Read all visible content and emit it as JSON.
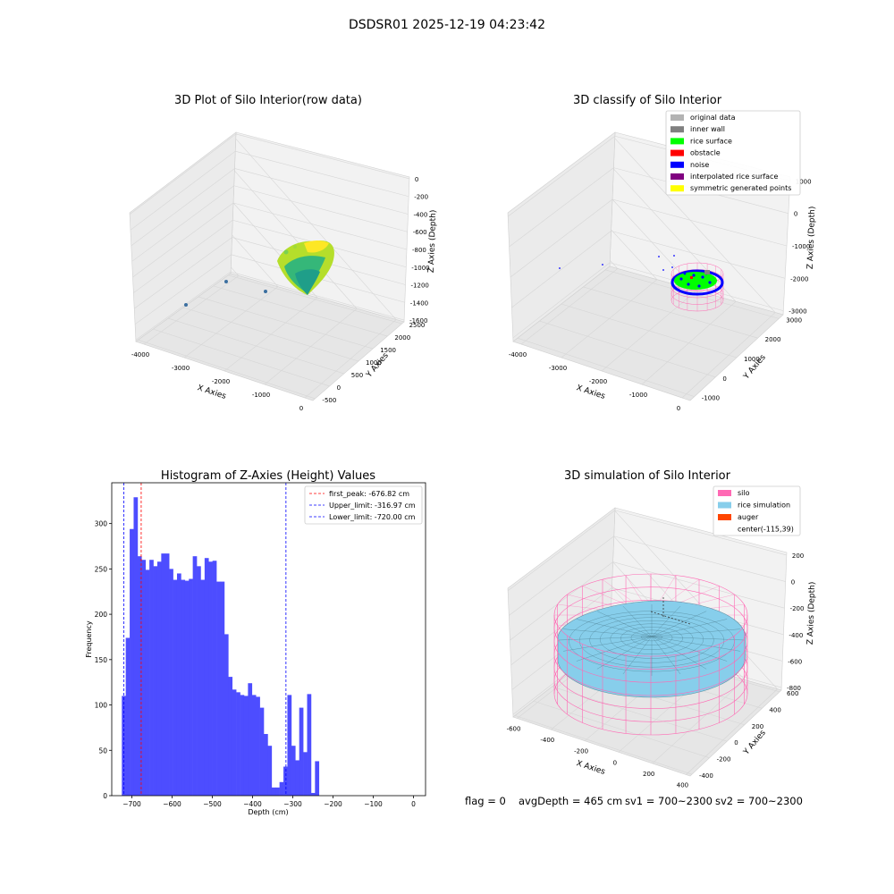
{
  "figure": {
    "suptitle": "DSDSR01 2025-12-19 04:23:42",
    "footer": {
      "flag": "flag = 0",
      "avg_depth": "avgDepth = 465 cm",
      "sv1": "sv1 = 700~2300",
      "sv2": "sv2 = 700~2300"
    }
  },
  "chart_data": [
    {
      "type": "scatter",
      "projection": "3d",
      "title": "3D Plot of Silo Interior(row data)",
      "xlabel": "X Axies",
      "ylabel": "Y Axies",
      "zlabel": "Z Axies (Depth)",
      "x_ticks": [
        "-4000",
        "-3000",
        "-2000",
        "-1000",
        "0"
      ],
      "y_ticks": [
        "-500",
        "0",
        "500",
        "1000",
        "1500",
        "2000",
        "2500"
      ],
      "z_ticks": [
        "-1600",
        "-1400",
        "-1200",
        "-1000",
        "-800",
        "-600",
        "-400",
        "-200",
        "0"
      ],
      "colormap": "viridis",
      "grid": true
    },
    {
      "type": "scatter",
      "projection": "3d",
      "title": "3D classify of Silo Interior",
      "xlabel": "X Axies",
      "ylabel": "Y Axies",
      "zlabel": "Z Axies (Depth)",
      "x_ticks": [
        "-4000",
        "-3000",
        "-2000",
        "-1000",
        "0"
      ],
      "y_ticks": [
        "-1000",
        "0",
        "1000",
        "2000",
        "3000"
      ],
      "z_ticks": [
        "-3000",
        "-2000",
        "-1000",
        "0",
        "1000"
      ],
      "legend": [
        {
          "label": "original data",
          "color": "#b3b3b3"
        },
        {
          "label": "inner wall",
          "color": "#808080"
        },
        {
          "label": "rice surface",
          "color": "#00ff00"
        },
        {
          "label": "obstacle",
          "color": "#ff0000"
        },
        {
          "label": "noise",
          "color": "#0000ff"
        },
        {
          "label": "interpolated rice surface",
          "color": "#800080"
        },
        {
          "label": "symmetric generated points",
          "color": "#ffff00"
        }
      ],
      "legend_position": "top-right",
      "grid": true
    },
    {
      "type": "bar",
      "title": "Histogram of Z-Axies (Height) Values",
      "xlabel": "Depth (cm)",
      "ylabel": "Frequency",
      "bar_color": "#4d4dff",
      "bin_start": -725,
      "bin_width": 9.8,
      "values": [
        110,
        174,
        294,
        329,
        264,
        260,
        249,
        260,
        253,
        258,
        267,
        267,
        250,
        238,
        245,
        238,
        237,
        239,
        264,
        253,
        238,
        262,
        258,
        259,
        236,
        236,
        178,
        131,
        117,
        114,
        111,
        110,
        124,
        111,
        109,
        97,
        68,
        55,
        9,
        9,
        15,
        32,
        111,
        55,
        39,
        97,
        48,
        112,
        3,
        38
      ],
      "xlim": [
        -750,
        30
      ],
      "ylim": [
        0,
        345
      ],
      "x_ticks": [
        -700,
        -600,
        -500,
        -400,
        -300,
        -200,
        -100,
        0
      ],
      "x_tick_labels": [
        "−700",
        "−600",
        "−500",
        "−400",
        "−300",
        "−200",
        "−100",
        "0"
      ],
      "y_ticks": [
        0,
        50,
        100,
        150,
        200,
        250,
        300
      ],
      "y_tick_labels": [
        "0",
        "50",
        "100",
        "150",
        "200",
        "250",
        "300"
      ],
      "vlines": [
        {
          "value": -676.82,
          "color": "#ff0000",
          "label": "first_peak: -676.82 cm"
        },
        {
          "value": -316.97,
          "color": "#0000ff",
          "label": "Upper_limit: -316.97 cm"
        },
        {
          "value": -720.0,
          "color": "#0000ff",
          "label": "Lower_limit: -720.00 cm"
        }
      ],
      "legend_position": "top-right",
      "grid": false
    },
    {
      "type": "scatter",
      "projection": "3d",
      "title": "3D simulation of Silo Interior",
      "xlabel": "X Axies",
      "ylabel": "Y Axies",
      "zlabel": "Z Axies (Depth)",
      "x_ticks": [
        "-600",
        "-400",
        "-200",
        "0",
        "200",
        "400"
      ],
      "y_ticks": [
        "-400",
        "-200",
        "0",
        "200",
        "400",
        "600"
      ],
      "z_ticks": [
        "-800",
        "-600",
        "-400",
        "-200",
        "0",
        "200"
      ],
      "legend": [
        {
          "label": "silo",
          "color": "#ff69b4"
        },
        {
          "label": "rice simulation",
          "color": "#87ceeb"
        },
        {
          "label": "auger",
          "color": "#ff4500"
        },
        {
          "label": "center(-115,39)",
          "color": ""
        }
      ],
      "legend_position": "top-right",
      "grid": true
    }
  ]
}
